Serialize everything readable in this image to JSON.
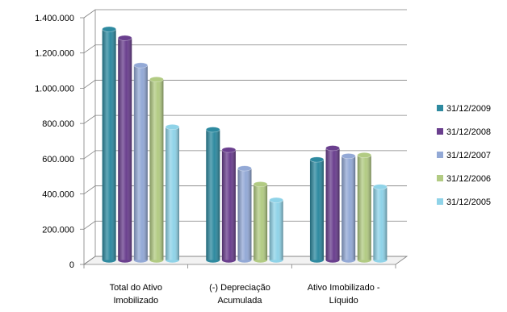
{
  "chart_data": {
    "type": "bar",
    "title": "",
    "xlabel": "",
    "ylabel": "",
    "ylim": [
      0,
      1400000
    ],
    "yticks": [
      0,
      200000,
      400000,
      600000,
      800000,
      1000000,
      1200000,
      1400000
    ],
    "ytick_labels": [
      "0",
      "200.000",
      "400.000",
      "600.000",
      "800.000",
      "1.000.000",
      "1.200.000",
      "1.400.000"
    ],
    "categories": [
      [
        "Total do Ativo",
        "Imobilizado"
      ],
      [
        "(-) Depreciação",
        "Acumulada"
      ],
      [
        "Ativo Imobilizado -",
        "Líquido"
      ]
    ],
    "series": [
      {
        "name": "31/12/2009",
        "color": "#2E8AA0",
        "values": [
          1310000,
          740000,
          570000
        ]
      },
      {
        "name": "31/12/2008",
        "color": "#6A3F8E",
        "values": [
          1260000,
          625000,
          635000
        ]
      },
      {
        "name": "31/12/2007",
        "color": "#93A9D6",
        "values": [
          1105000,
          520000,
          590000
        ]
      },
      {
        "name": "31/12/2006",
        "color": "#B2CB83",
        "values": [
          1025000,
          430000,
          595000
        ]
      },
      {
        "name": "31/12/2005",
        "color": "#8FD3E8",
        "values": [
          755000,
          340000,
          415000
        ]
      }
    ],
    "grid": true,
    "legend_position": "right",
    "style": "3d-cylinder"
  }
}
